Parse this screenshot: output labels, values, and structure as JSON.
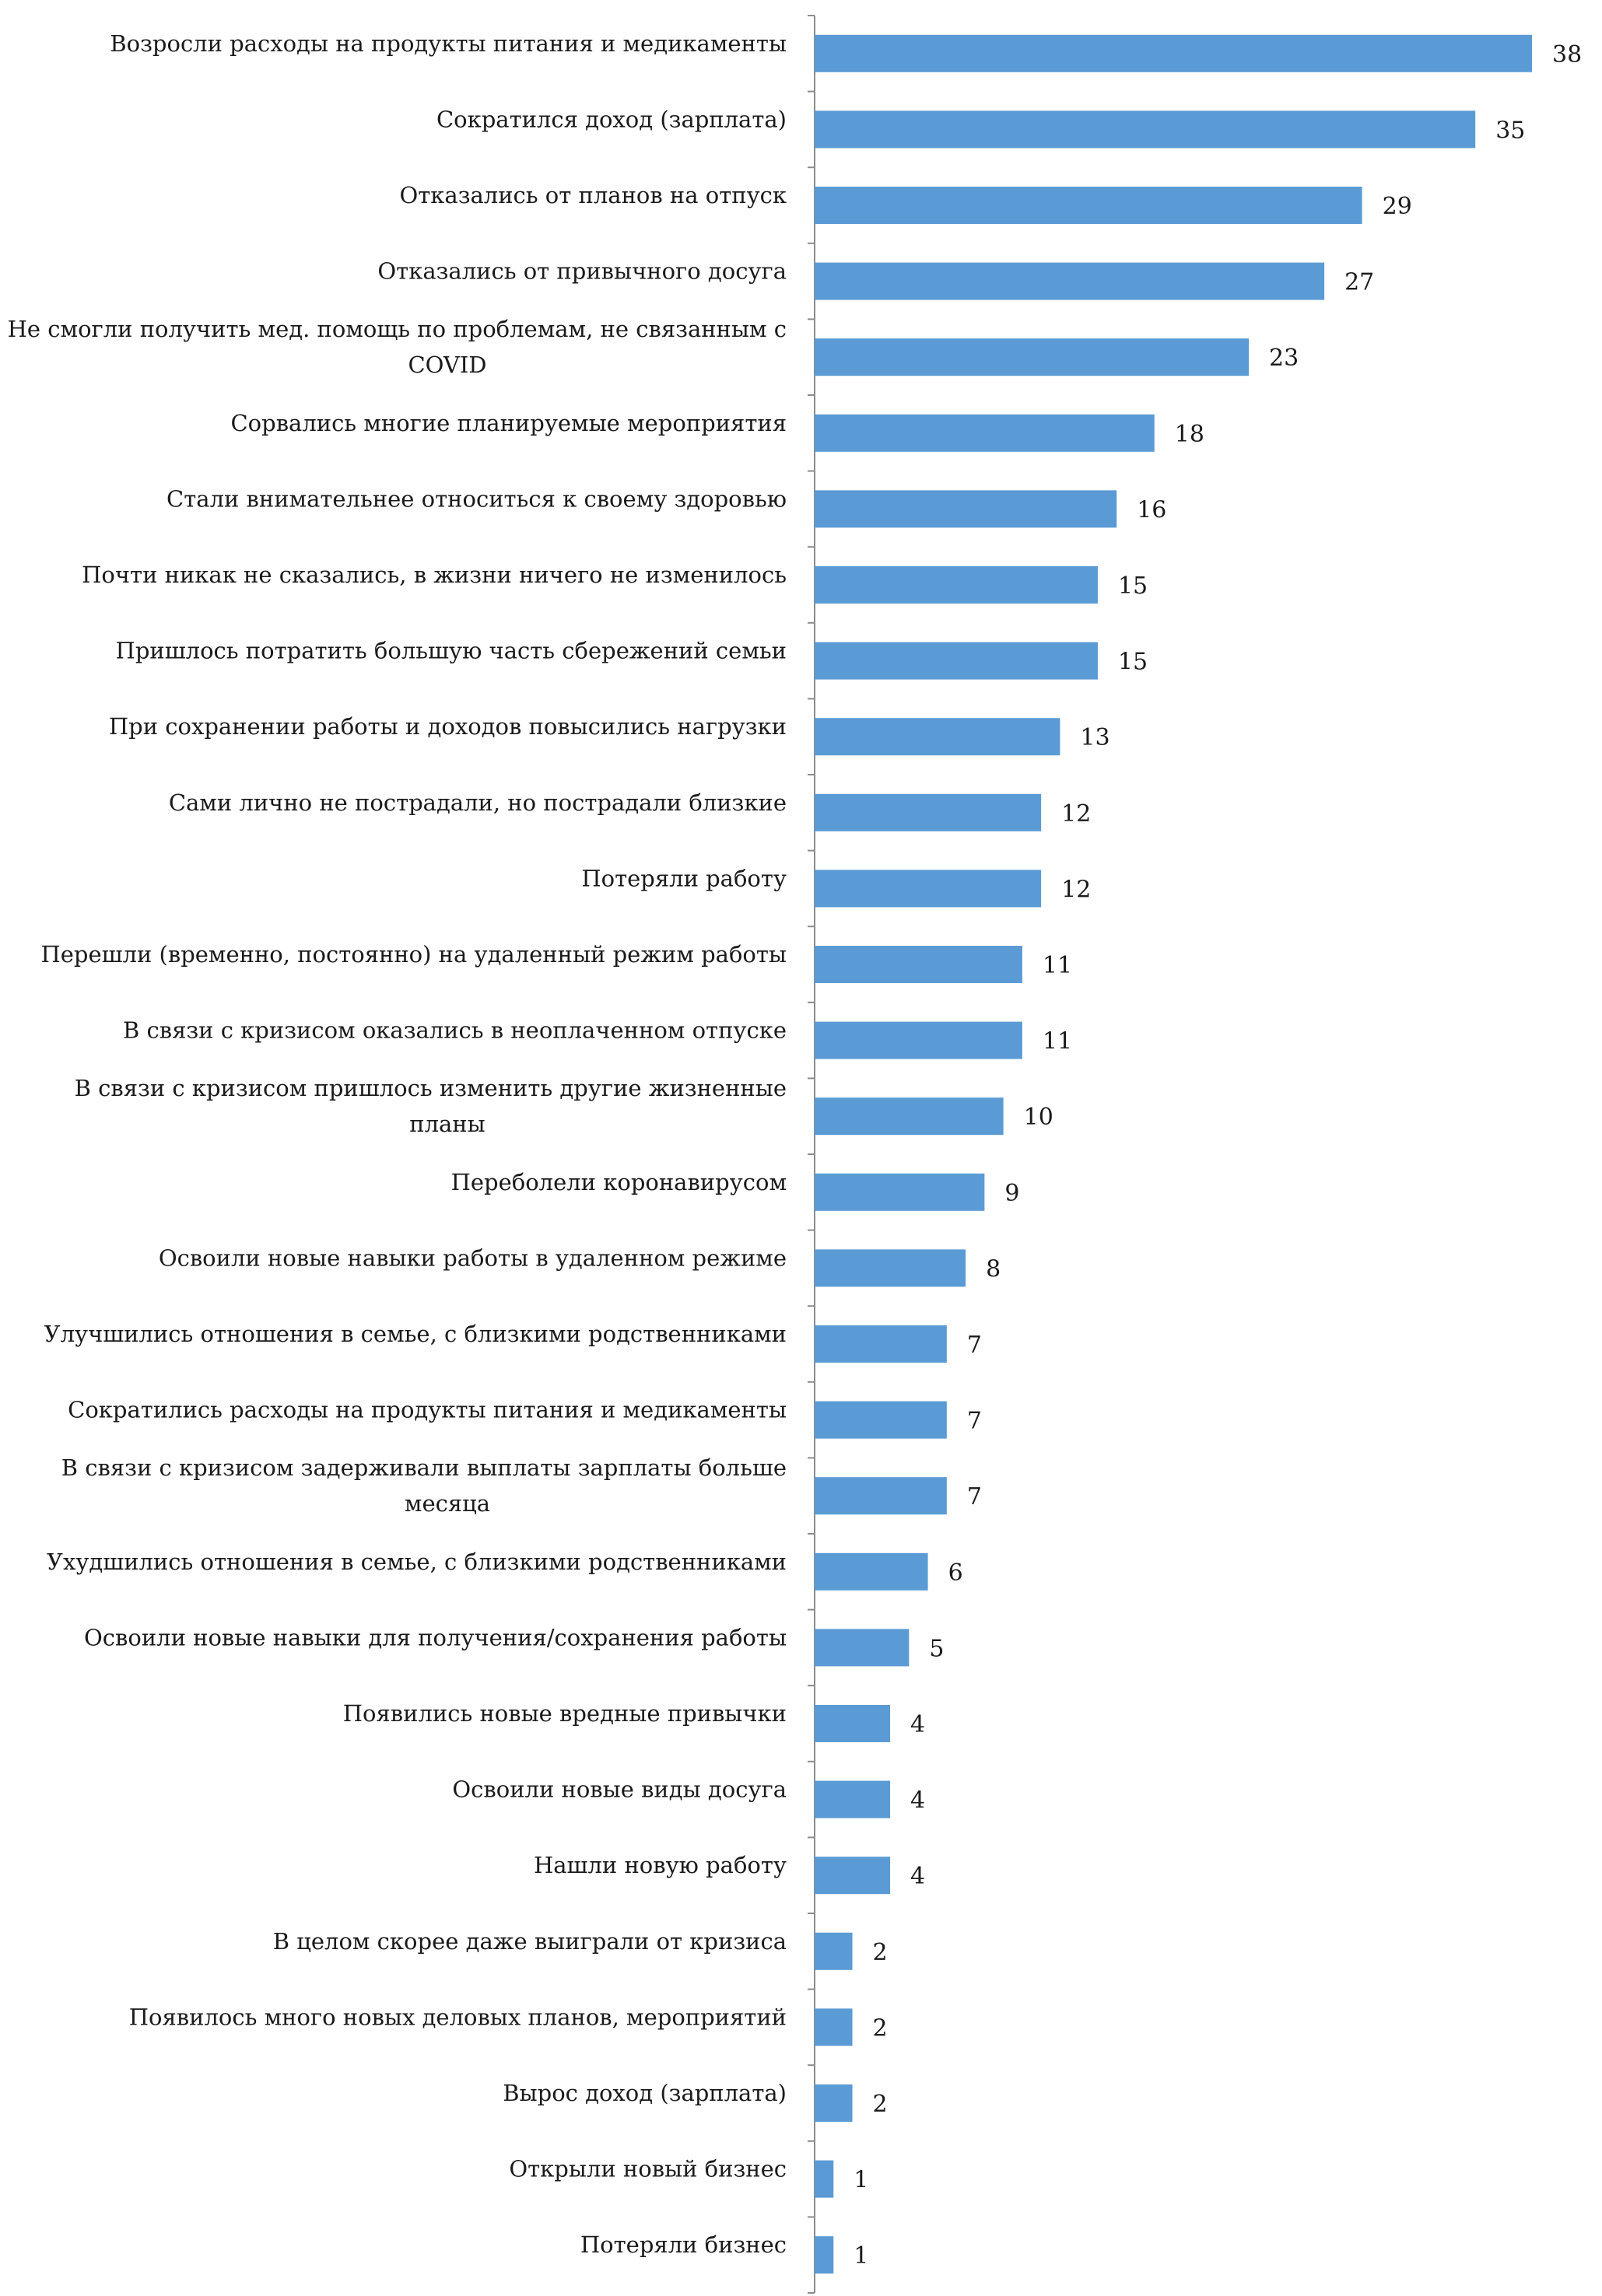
{
  "chart_data": {
    "type": "bar",
    "orientation": "horizontal",
    "title": "",
    "xlabel": "",
    "ylabel": "",
    "xlim": [
      0,
      38
    ],
    "grid": false,
    "legend": "none",
    "bar_color": "#5b9bd5",
    "axis_color": "#8c8c8c",
    "categories": [
      [
        "Возросли расходы на продукты питания и медикаменты"
      ],
      [
        "Сократился доход (зарплата)"
      ],
      [
        "Отказались от планов на отпуск"
      ],
      [
        "Отказались от привычного досуга"
      ],
      [
        "Не смогли получить мед. помощь по проблемам, не связанным с",
        "COVID"
      ],
      [
        "Сорвались многие планируемые мероприятия"
      ],
      [
        "Стали внимательнее относиться к своему здоровью"
      ],
      [
        "Почти никак не сказались, в жизни ничего не изменилось"
      ],
      [
        "Пришлось потратить большую часть сбережений семьи"
      ],
      [
        "При сохранении работы и доходов повысились нагрузки"
      ],
      [
        "Сами лично не пострадали, но пострадали близкие"
      ],
      [
        "Потеряли работу"
      ],
      [
        "Перешли (временно, постоянно) на удаленный режим работы"
      ],
      [
        "В связи с кризисом оказались в неоплаченном отпуске"
      ],
      [
        "В связи с кризисом пришлось изменить другие жизненные",
        "планы"
      ],
      [
        "Переболели коронавирусом"
      ],
      [
        "Освоили новые навыки работы в удаленном режиме"
      ],
      [
        "Улучшились отношения в семье, с близкими родственниками"
      ],
      [
        "Сократились расходы на продукты питания и медикаменты"
      ],
      [
        "В связи с кризисом задерживали выплаты зарплаты больше",
        "месяца"
      ],
      [
        "Ухудшились отношения в семье, с близкими родственниками"
      ],
      [
        "Освоили новые навыки для получения/сохранения работы"
      ],
      [
        "Появились новые вредные привычки"
      ],
      [
        "Освоили новые виды досуга"
      ],
      [
        "Нашли новую работу"
      ],
      [
        "В целом скорее даже выиграли от кризиса"
      ],
      [
        "Появилось много новых деловых планов, мероприятий"
      ],
      [
        "Вырос доход (зарплата)"
      ],
      [
        "Открыли новый бизнес"
      ],
      [
        "Потеряли бизнес"
      ]
    ],
    "values": [
      38,
      35,
      29,
      27,
      23,
      18,
      16,
      15,
      15,
      13,
      12,
      12,
      11,
      11,
      10,
      9,
      8,
      7,
      7,
      7,
      6,
      5,
      4,
      4,
      4,
      2,
      2,
      2,
      1,
      1
    ]
  }
}
